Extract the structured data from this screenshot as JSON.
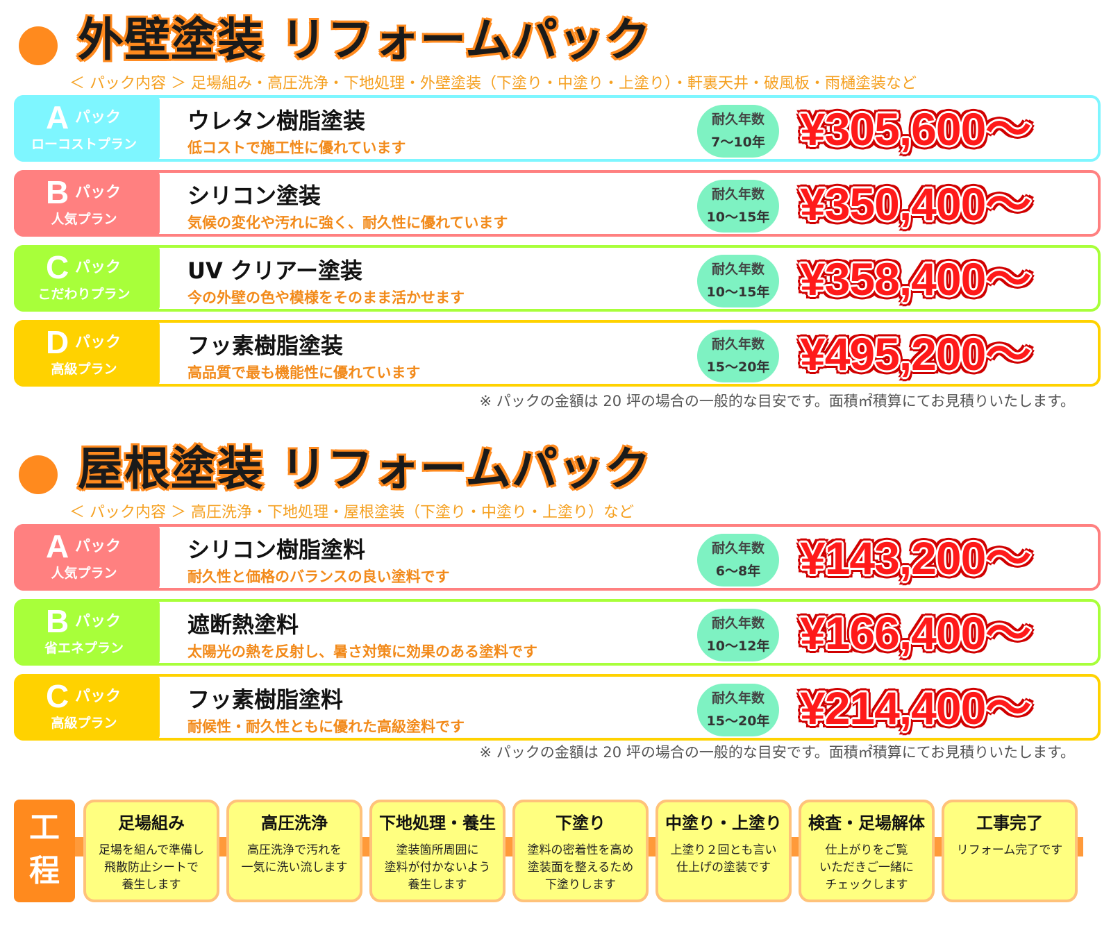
{
  "colors": {
    "accent_orange": "#ff8a1e",
    "price_red": "#ff1a1a",
    "cyan": "#7ef6ff",
    "pink": "#ff8080",
    "green": "#a8ff3a",
    "yellow": "#ffd200",
    "duration_badge": "#7ef2c2"
  },
  "exterior": {
    "title": "外壁塗装 リフォームパック",
    "contents": "＜ パック内容 ＞ 足場組み・高圧洗浄・下地処理・外壁塗装（下塗り・中塗り・上塗り）・軒裏天井・破風板・雨樋塗装など",
    "plans": [
      {
        "letter": "A",
        "pack": "パック",
        "plan": "ローコストプラン",
        "name": "ウレタン樹脂塗装",
        "desc": "低コストで施工性に優れています",
        "dur_label": "耐久年数",
        "dur": "7～10年",
        "price": "¥305,600～"
      },
      {
        "letter": "B",
        "pack": "パック",
        "plan": "人気プラン",
        "name": "シリコン塗装",
        "desc": "気候の変化や汚れに強く、耐久性に優れています",
        "dur_label": "耐久年数",
        "dur": "10～15年",
        "price": "¥350,400～"
      },
      {
        "letter": "C",
        "pack": "パック",
        "plan": "こだわりプラン",
        "name": "UV クリアー塗装",
        "desc": "今の外壁の色や模様をそのまま活かせます",
        "dur_label": "耐久年数",
        "dur": "10～15年",
        "price": "¥358,400～"
      },
      {
        "letter": "D",
        "pack": "パック",
        "plan": "高級プラン",
        "name": "フッ素樹脂塗装",
        "desc": "高品質で最も機能性に優れています",
        "dur_label": "耐久年数",
        "dur": "15～20年",
        "price": "¥495,200～"
      }
    ],
    "note": "※ パックの金額は 20 坪の場合の一般的な目安です。面積㎡積算にてお見積りいたします。"
  },
  "roof": {
    "title": "屋根塗装 リフォームパック",
    "contents": "＜ パック内容 ＞ 高圧洗浄・下地処理・屋根塗装（下塗り・中塗り・上塗り）など",
    "plans": [
      {
        "letter": "A",
        "pack": "パック",
        "plan": "人気プラン",
        "name": "シリコン樹脂塗料",
        "desc": "耐久性と価格のバランスの良い塗料です",
        "dur_label": "耐久年数",
        "dur": "6～8年",
        "price": "¥143,200～"
      },
      {
        "letter": "B",
        "pack": "パック",
        "plan": "省エネプラン",
        "name": "遮断熱塗料",
        "desc": "太陽光の熱を反射し、暑さ対策に効果のある塗料です",
        "dur_label": "耐久年数",
        "dur": "10～12年",
        "price": "¥166,400～"
      },
      {
        "letter": "C",
        "pack": "パック",
        "plan": "高級プラン",
        "name": "フッ素樹脂塗料",
        "desc": "耐候性・耐久性ともに優れた高級塗料です",
        "dur_label": "耐久年数",
        "dur": "15～20年",
        "price": "¥214,400～"
      }
    ],
    "note": "※ パックの金額は 20 坪の場合の一般的な目安です。面積㎡積算にてお見積りいたします。"
  },
  "process": {
    "head1": "工",
    "head2": "程",
    "steps": [
      {
        "title": "足場組み",
        "desc": "足場を組んで準備し\n飛散防止シートで\n養生します"
      },
      {
        "title": "高圧洗浄",
        "desc": "高圧洗浄で汚れを\n一気に洗い流します"
      },
      {
        "title": "下地処理・養生",
        "desc": "塗装箇所周囲に\n塗料が付かないよう\n養生します"
      },
      {
        "title": "下塗り",
        "desc": "塗料の密着性を高め\n塗装面を整えるため\n下塗りします"
      },
      {
        "title": "中塗り・上塗り",
        "desc": "上塗り２回とも言い\n仕上げの塗装です"
      },
      {
        "title": "検査・足場解体",
        "desc": "仕上がりをご覧\nいただきご一緒に\nチェックします"
      },
      {
        "title": "工事完了",
        "desc": "リフォーム完了です"
      }
    ]
  }
}
